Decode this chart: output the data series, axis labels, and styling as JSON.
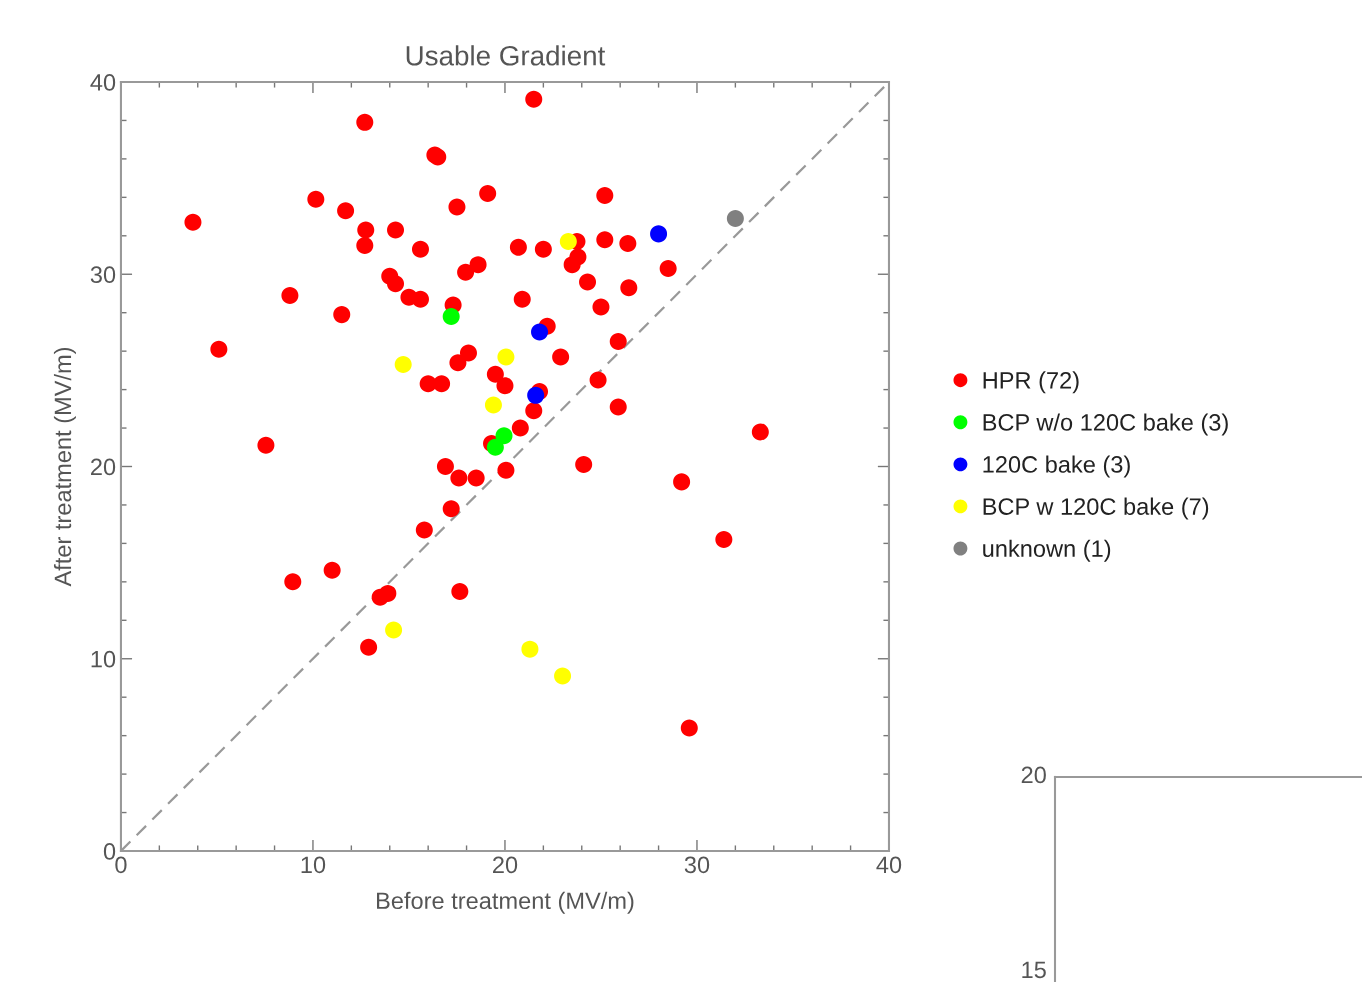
{
  "chart_data": [
    {
      "type": "scatter",
      "title": "Usable Gradient",
      "xlabel": "Before treatment (MV/m)",
      "ylabel": "After treatment (MV/m)",
      "xlim": [
        0,
        40
      ],
      "ylim": [
        0,
        40
      ],
      "xticks": [
        0,
        10,
        20,
        30,
        40
      ],
      "yticks": [
        0,
        10,
        20,
        30,
        40
      ],
      "grid": false,
      "legend": "right",
      "marker": "circle",
      "series": [
        {
          "name": "HPR (72)",
          "color": "#ff0000",
          "x": [
            3.75,
            5.1,
            7.55,
            8.8,
            8.95,
            10.15,
            11.0,
            11.5,
            11.7,
            12.7,
            12.75,
            12.7,
            12.9,
            13.5,
            13.9,
            14.0,
            14.3,
            14.3,
            15.0,
            15.6,
            15.6,
            15.8,
            16.0,
            16.7,
            16.35,
            16.5,
            16.9,
            17.2,
            17.3,
            17.5,
            17.55,
            17.65,
            17.6,
            17.95,
            18.1,
            18.5,
            18.6,
            19.1,
            19.3,
            19.5,
            20.0,
            20.05,
            20.7,
            20.8,
            20.9,
            21.5,
            21.5,
            21.8,
            22.0,
            22.2,
            22.9,
            23.75,
            23.8,
            23.5,
            24.1,
            24.3,
            24.85,
            25.0,
            25.2,
            25.2,
            25.9,
            25.9,
            26.4,
            26.45,
            28.5,
            29.2,
            29.6,
            31.4,
            33.3
          ],
          "values": [
            32.7,
            26.1,
            21.1,
            28.9,
            14.0,
            33.9,
            14.6,
            27.9,
            33.3,
            37.9,
            32.3,
            31.5,
            10.6,
            13.2,
            13.4,
            29.9,
            29.5,
            32.3,
            28.8,
            28.7,
            31.3,
            16.7,
            24.3,
            24.3,
            36.2,
            36.1,
            20.0,
            17.8,
            28.4,
            33.5,
            25.4,
            13.5,
            19.4,
            30.1,
            25.9,
            19.4,
            30.5,
            34.2,
            21.2,
            24.8,
            24.2,
            19.8,
            31.4,
            22.0,
            28.7,
            39.1,
            22.9,
            23.9,
            31.3,
            27.3,
            25.7,
            31.7,
            30.9,
            30.5,
            20.1,
            29.6,
            24.5,
            28.3,
            31.8,
            34.1,
            26.5,
            23.1,
            31.6,
            29.3,
            30.3,
            19.2,
            6.4,
            16.2,
            21.8
          ]
        },
        {
          "name": "BCP w/o 120C bake (3)",
          "color": "#00ff00",
          "x": [
            17.2,
            19.95,
            19.5
          ],
          "values": [
            27.8,
            21.6,
            21.0
          ]
        },
        {
          "name": "120C bake (3)",
          "color": "#0000ff",
          "x": [
            28.0,
            21.8,
            21.6
          ],
          "values": [
            32.1,
            27.0,
            23.7
          ]
        },
        {
          "name": "BCP w 120C bake (7)",
          "color": "#ffff00",
          "x": [
            23.3,
            14.7,
            20.05,
            19.4,
            14.2,
            21.3,
            23.0
          ],
          "values": [
            31.7,
            25.3,
            25.7,
            23.2,
            11.5,
            10.5,
            9.1
          ]
        },
        {
          "name": "unknown (1)",
          "color": "#808080",
          "x": [
            32.0
          ],
          "values": [
            32.9
          ]
        },
        {
          "type": "line",
          "color": "#999999",
          "line_style": "dashed",
          "marker": "none",
          "x": [
            0,
            40
          ],
          "values": [
            0,
            40
          ]
        }
      ]
    },
    {
      "type": "other",
      "annotations": [
        "20",
        "15"
      ]
    }
  ]
}
